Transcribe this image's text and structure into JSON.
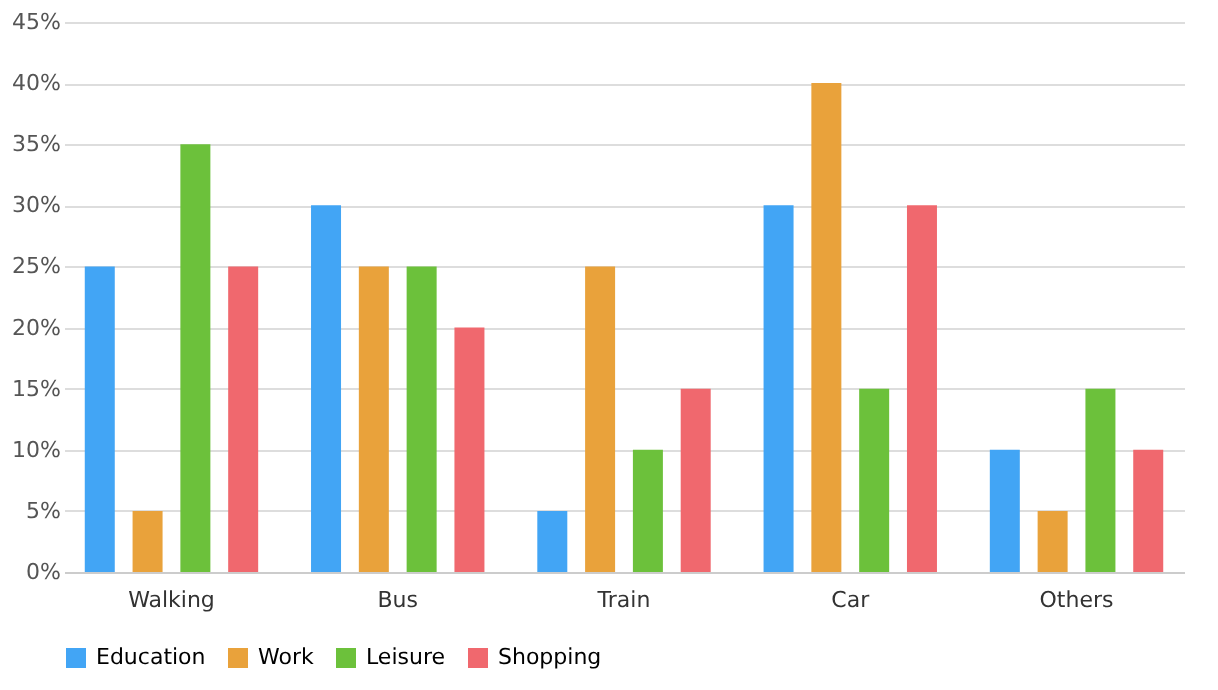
{
  "chart_data": {
    "type": "bar",
    "categories": [
      "Walking",
      "Bus",
      "Train",
      "Car",
      "Others"
    ],
    "series": [
      {
        "name": "Education",
        "color": "#42a5f5",
        "values": [
          25,
          30,
          5,
          30,
          10
        ]
      },
      {
        "name": "Work",
        "color": "#e9a23b",
        "values": [
          5,
          25,
          25,
          40,
          5
        ]
      },
      {
        "name": "Leisure",
        "color": "#6cc13b",
        "values": [
          35,
          25,
          10,
          15,
          15
        ]
      },
      {
        "name": "Shopping",
        "color": "#f0686e",
        "values": [
          25,
          20,
          15,
          30,
          10
        ]
      }
    ],
    "ylim": [
      0,
      45
    ],
    "yticks": [
      {
        "value": 0,
        "label": "0%"
      },
      {
        "value": 5,
        "label": "5%"
      },
      {
        "value": 10,
        "label": "10%"
      },
      {
        "value": 15,
        "label": "15%"
      },
      {
        "value": 20,
        "label": "20%"
      },
      {
        "value": 25,
        "label": "25%"
      },
      {
        "value": 30,
        "label": "30%"
      },
      {
        "value": 35,
        "label": "35%"
      },
      {
        "value": 40,
        "label": "40%"
      },
      {
        "value": 45,
        "label": "45%"
      }
    ],
    "grid": "y",
    "legend": "bottom"
  }
}
